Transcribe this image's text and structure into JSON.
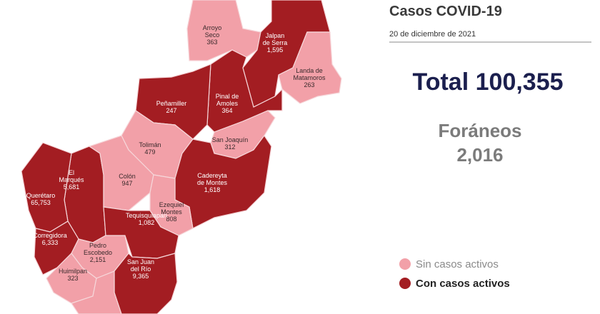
{
  "header": {
    "title": "Casos COVID-19",
    "date": "20 de diciembre de 2021"
  },
  "total": {
    "label": "Total",
    "value": "100,355"
  },
  "foraneos": {
    "label": "Foráneos",
    "value": "2,016"
  },
  "legend": [
    {
      "label": "Sin casos activos",
      "color": "#f2a0a8"
    },
    {
      "label": "Con casos activos",
      "color": "#a31d22"
    }
  ],
  "municipalities": [
    {
      "name": [
        "Arroyo",
        "Seco"
      ],
      "cases": "363",
      "active": false
    },
    {
      "name": [
        "Jalpan",
        "de Serra"
      ],
      "cases": "1,595",
      "active": true
    },
    {
      "name": [
        "Landa de",
        "Matamoros"
      ],
      "cases": "263",
      "active": false
    },
    {
      "name": [
        "Pinal de",
        "Amoles"
      ],
      "cases": "364",
      "active": true
    },
    {
      "name": [
        "Peñamiller"
      ],
      "cases": "247",
      "active": true
    },
    {
      "name": [
        "San Joaquín"
      ],
      "cases": "312",
      "active": false
    },
    {
      "name": [
        "Tolimán"
      ],
      "cases": "479",
      "active": false
    },
    {
      "name": [
        "Cadereyta",
        "de Montes"
      ],
      "cases": "1,618",
      "active": true
    },
    {
      "name": [
        "El",
        "Marqués"
      ],
      "cases": "5,681",
      "active": true
    },
    {
      "name": [
        "Querétaro"
      ],
      "cases": "65,753",
      "active": true
    },
    {
      "name": [
        "Colón"
      ],
      "cases": "947",
      "active": false
    },
    {
      "name": [
        "Ezequiel",
        "Montes"
      ],
      "cases": "808",
      "active": false
    },
    {
      "name": [
        "Corregidora"
      ],
      "cases": "6,333",
      "active": true
    },
    {
      "name": [
        "Pedro",
        "Escobedo"
      ],
      "cases": "2,151",
      "active": false
    },
    {
      "name": [
        "Tequisquiapan"
      ],
      "cases": "1,082",
      "active": true
    },
    {
      "name": [
        "Huimilpan"
      ],
      "cases": "323",
      "active": false
    },
    {
      "name": [
        "San Juan",
        "del Río"
      ],
      "cases": "9,365",
      "active": true
    }
  ]
}
